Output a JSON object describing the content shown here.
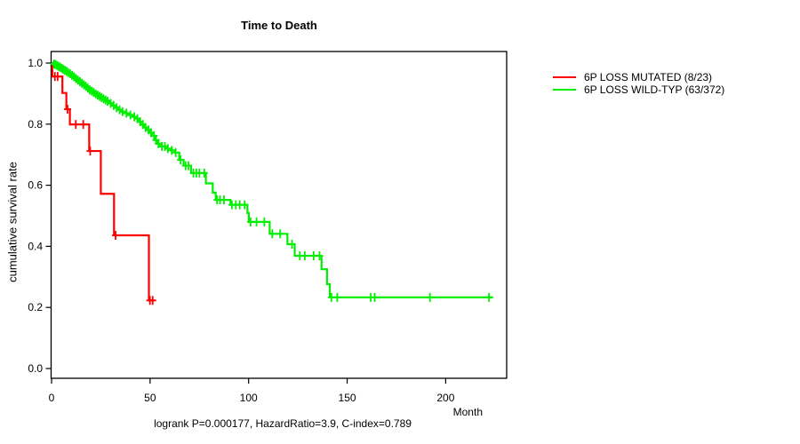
{
  "chart_data": {
    "type": "line",
    "subtype": "kaplan-meier-step-curves",
    "title": "Time to Death",
    "xlabel": "Month",
    "ylabel": "cumulative survival rate",
    "annotation": "logrank P=0.000177, HazardRatio=3.9, C-index=0.789",
    "xlim": [
      0,
      231
    ],
    "ylim": [
      0.0,
      1.0
    ],
    "xticks": [
      0,
      50,
      100,
      150,
      200
    ],
    "xtick_labels": [
      "0",
      "50",
      "100",
      "150",
      "200"
    ],
    "yticks": [
      0.0,
      0.2,
      0.4,
      0.6,
      0.8,
      1.0
    ],
    "ytick_labels": [
      "0.0",
      "0.2",
      "0.4",
      "0.6",
      "0.8",
      "1.0"
    ],
    "grid": false,
    "legend_position": "right-outside",
    "axis_color": "#000000",
    "series": [
      {
        "name": "6P LOSS MUTATED (8/23)",
        "color": "#ff0000",
        "steps": [
          [
            0,
            1.0
          ],
          [
            0.4,
            0.956
          ],
          [
            5.5,
            0.902
          ],
          [
            7.5,
            0.849
          ],
          [
            9.3,
            0.799
          ],
          [
            19.1,
            0.712
          ],
          [
            25.0,
            0.572
          ],
          [
            31.7,
            0.436
          ],
          [
            49.4,
            0.223
          ]
        ],
        "end_time": 52.3,
        "censor_times": [
          1.7,
          3.1,
          8.1,
          12.3,
          16.1,
          19.6,
          32.5,
          49.9,
          51.3
        ]
      },
      {
        "name": "6P LOSS WILD-TYP (63/372)",
        "color": "#00ee00",
        "steps": [
          [
            0,
            1.0
          ],
          [
            0.8,
            0.997
          ],
          [
            1.6,
            0.995
          ],
          [
            2.4,
            0.992
          ],
          [
            3.2,
            0.989
          ],
          [
            4,
            0.986
          ],
          [
            4.8,
            0.983
          ],
          [
            5.6,
            0.979
          ],
          [
            6.4,
            0.976
          ],
          [
            7.2,
            0.973
          ],
          [
            8,
            0.969
          ],
          [
            9,
            0.965
          ],
          [
            10,
            0.96
          ],
          [
            11,
            0.955
          ],
          [
            12,
            0.949
          ],
          [
            13,
            0.944
          ],
          [
            14,
            0.939
          ],
          [
            15,
            0.934
          ],
          [
            16,
            0.929
          ],
          [
            17,
            0.924
          ],
          [
            18,
            0.918
          ],
          [
            19,
            0.912
          ],
          [
            20,
            0.908
          ],
          [
            21,
            0.904
          ],
          [
            22,
            0.899
          ],
          [
            23,
            0.895
          ],
          [
            24,
            0.891
          ],
          [
            25,
            0.887
          ],
          [
            26,
            0.883
          ],
          [
            27,
            0.879
          ],
          [
            28,
            0.875
          ],
          [
            29.5,
            0.868
          ],
          [
            31,
            0.861
          ],
          [
            32.5,
            0.854
          ],
          [
            34,
            0.847
          ],
          [
            35.5,
            0.841
          ],
          [
            37,
            0.836
          ],
          [
            39,
            0.83
          ],
          [
            41,
            0.824
          ],
          [
            43,
            0.818
          ],
          [
            44.2,
            0.808
          ],
          [
            45.2,
            0.799
          ],
          [
            46.8,
            0.789
          ],
          [
            48.2,
            0.781
          ],
          [
            49.8,
            0.772
          ],
          [
            51,
            0.762
          ],
          [
            52.2,
            0.748
          ],
          [
            53.5,
            0.736
          ],
          [
            55,
            0.727
          ],
          [
            58,
            0.72
          ],
          [
            60.5,
            0.714
          ],
          [
            62.6,
            0.707
          ],
          [
            64.8,
            0.683
          ],
          [
            67,
            0.664
          ],
          [
            70.8,
            0.64
          ],
          [
            78.3,
            0.606
          ],
          [
            81.8,
            0.576
          ],
          [
            83.3,
            0.552
          ],
          [
            90.8,
            0.536
          ],
          [
            99.4,
            0.509
          ],
          [
            100.1,
            0.48
          ],
          [
            110.7,
            0.441
          ],
          [
            119.7,
            0.407
          ],
          [
            123.4,
            0.369
          ],
          [
            137,
            0.325
          ],
          [
            139.8,
            0.276
          ],
          [
            141.2,
            0.233
          ]
        ],
        "end_time": 224,
        "censor_times": [
          1.2,
          2,
          2.8,
          3.6,
          4.4,
          5.2,
          6,
          6.8,
          7.6,
          8.4,
          9.4,
          10.4,
          11.4,
          12.4,
          13.4,
          14.4,
          15.4,
          16.4,
          17.4,
          18.4,
          19.4,
          20.4,
          21.4,
          22.4,
          23.4,
          24.4,
          25.4,
          26.4,
          27.4,
          28.4,
          30,
          31.5,
          33,
          34.5,
          36,
          38,
          40,
          42,
          43.5,
          45,
          46.3,
          47.7,
          49.2,
          50.5,
          52,
          53,
          54.2,
          56,
          57.5,
          59,
          61,
          63,
          65.5,
          68,
          69.5,
          72,
          73.5,
          75,
          77.5,
          84,
          85.5,
          87.5,
          91.5,
          93.5,
          95.5,
          98,
          101,
          104,
          108,
          112,
          116,
          122,
          126,
          128.5,
          133,
          136,
          142,
          145,
          162,
          164,
          192,
          222
        ]
      }
    ]
  }
}
